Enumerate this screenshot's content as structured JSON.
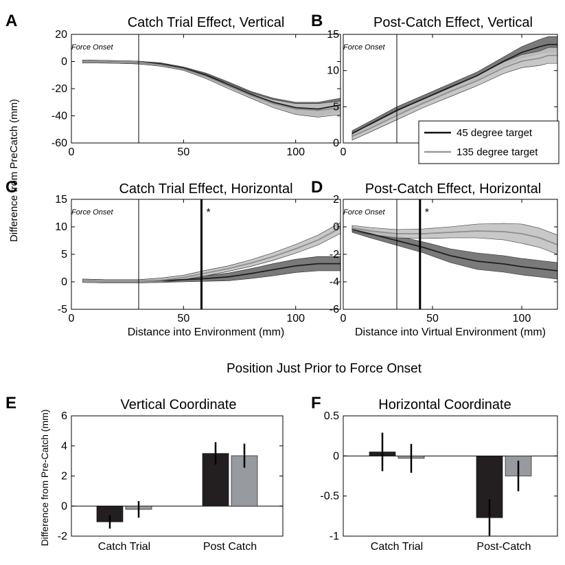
{
  "figure": {
    "ylabel_top": "Difference from PreCatch (mm)",
    "ylabel_bottom": "Difference from Pre-Catch (mm)",
    "section_title": "Position Just Prior to Force Onset",
    "legend": {
      "items": [
        {
          "label": "45 degree target",
          "color": "#111111"
        },
        {
          "label": "135 degree target",
          "color": "#999999"
        }
      ]
    },
    "colors": {
      "dark_line": "#1e1e1e",
      "dark_band": "#6b6b6b",
      "light_line": "#8e8e8e",
      "light_band": "#c2c2c2",
      "bar_dark": "#231f20",
      "bar_light": "#979a9e"
    }
  },
  "chart_data": [
    {
      "id": "A",
      "panel_letter": "A",
      "type": "line",
      "title": "Catch Trial Effect, Vertical",
      "xlabel": "",
      "ylabel": "",
      "xlim": [
        0,
        120
      ],
      "ylim": [
        -60,
        20
      ],
      "xticks": [
        0,
        50,
        100
      ],
      "yticks": [
        -60,
        -40,
        -20,
        0,
        20
      ],
      "annotation": {
        "text": "Force Onset",
        "x": 30
      },
      "significance": null,
      "series": [
        {
          "name": "45 degree target",
          "tone": "dark",
          "x": [
            5,
            15,
            25,
            30,
            40,
            50,
            60,
            70,
            80,
            90,
            100,
            110,
            120
          ],
          "y": [
            0,
            -0.2,
            -0.5,
            -0.8,
            -2,
            -5,
            -10,
            -17,
            -24,
            -30,
            -34,
            -35,
            -32
          ],
          "band": [
            1,
            1,
            1,
            1,
            1,
            1,
            1.5,
            2,
            2,
            3,
            4,
            5,
            5
          ]
        },
        {
          "name": "135 degree target",
          "tone": "light",
          "x": [
            5,
            15,
            25,
            30,
            40,
            50,
            60,
            70,
            80,
            90,
            100,
            110,
            120
          ],
          "y": [
            0,
            -0.2,
            -0.5,
            -0.8,
            -2.5,
            -5.5,
            -11,
            -18,
            -25,
            -31,
            -35,
            -36,
            -34
          ],
          "band": [
            1,
            1,
            1,
            1,
            1,
            1,
            1.5,
            2,
            2,
            3,
            4,
            5,
            5
          ]
        }
      ]
    },
    {
      "id": "B",
      "panel_letter": "B",
      "type": "line",
      "title": "Post-Catch Effect, Vertical",
      "xlabel": "",
      "ylabel": "",
      "xlim": [
        0,
        120
      ],
      "ylim": [
        0,
        15
      ],
      "xticks": [
        0,
        50,
        100
      ],
      "yticks": [
        0,
        5,
        10,
        15
      ],
      "annotation": {
        "text": "Force Onset",
        "x": 30
      },
      "significance": null,
      "series": [
        {
          "name": "45 degree target",
          "tone": "dark",
          "x": [
            5,
            15,
            30,
            45,
            60,
            75,
            90,
            100,
            110,
            115,
            120
          ],
          "y": [
            1.3,
            2.6,
            4.5,
            6.1,
            7.7,
            9.3,
            11.3,
            12.5,
            13.3,
            13.6,
            13.6
          ],
          "band": [
            0.4,
            0.4,
            0.5,
            0.5,
            0.5,
            0.5,
            0.6,
            0.8,
            1.0,
            1.1,
            1.1
          ]
        },
        {
          "name": "135 degree target",
          "tone": "light",
          "x": [
            5,
            15,
            30,
            45,
            60,
            75,
            90,
            100,
            110,
            115,
            120
          ],
          "y": [
            0.9,
            2.0,
            3.8,
            5.5,
            7.1,
            8.6,
            10.4,
            11.3,
            11.7,
            12.1,
            12.1
          ],
          "band": [
            0.5,
            0.5,
            0.6,
            0.6,
            0.7,
            0.7,
            0.8,
            0.9,
            1.0,
            1.1,
            1.1
          ]
        }
      ]
    },
    {
      "id": "C",
      "panel_letter": "C",
      "type": "line",
      "title": "Catch Trial Effect, Horizontal",
      "xlabel": "Distance into Environment (mm)",
      "ylabel": "",
      "xlim": [
        0,
        120
      ],
      "ylim": [
        -5,
        15
      ],
      "xticks": [
        0,
        50,
        100
      ],
      "yticks": [
        -5,
        0,
        5,
        10,
        15
      ],
      "annotation": {
        "text": "Force Onset",
        "x": 30
      },
      "significance": {
        "x": 58,
        "mark": "*"
      },
      "series": [
        {
          "name": "45 degree target",
          "tone": "dark",
          "x": [
            5,
            15,
            25,
            30,
            40,
            50,
            60,
            70,
            80,
            90,
            100,
            110,
            120
          ],
          "y": [
            0.2,
            0.1,
            0.1,
            0.1,
            0.2,
            0.4,
            0.6,
            0.9,
            1.5,
            2.2,
            2.9,
            3.3,
            3.3
          ],
          "band": [
            0.3,
            0.3,
            0.3,
            0.3,
            0.3,
            0.4,
            0.5,
            0.7,
            0.9,
            1.1,
            1.2,
            1.3,
            1.3
          ]
        },
        {
          "name": "135 degree target",
          "tone": "light",
          "x": [
            5,
            15,
            25,
            30,
            40,
            50,
            60,
            70,
            80,
            90,
            100,
            110,
            120
          ],
          "y": [
            0.2,
            0.1,
            0.1,
            0.1,
            0.3,
            0.8,
            1.6,
            2.4,
            3.4,
            4.6,
            6.0,
            7.6,
            9.8
          ],
          "band": [
            0.3,
            0.3,
            0.3,
            0.3,
            0.4,
            0.4,
            0.5,
            0.5,
            0.6,
            0.7,
            0.8,
            0.9,
            1.0
          ]
        }
      ]
    },
    {
      "id": "D",
      "panel_letter": "D",
      "type": "line",
      "title": "Post-Catch Effect, Horizontal",
      "xlabel": "Distance into Virtual Environment (mm)",
      "ylabel": "",
      "xlim": [
        0,
        120
      ],
      "ylim": [
        -6,
        2
      ],
      "xticks": [
        0,
        50,
        100
      ],
      "yticks": [
        -6,
        -4,
        -2,
        0,
        2
      ],
      "annotation": {
        "text": "Force Onset",
        "x": 30
      },
      "significance": {
        "x": 43,
        "mark": "*"
      },
      "series": [
        {
          "name": "45 degree target",
          "tone": "dark",
          "x": [
            5,
            15,
            30,
            45,
            60,
            75,
            90,
            100,
            110,
            120
          ],
          "y": [
            -0.2,
            -0.5,
            -1.0,
            -1.5,
            -2.1,
            -2.5,
            -2.7,
            -2.9,
            -3.05,
            -3.2
          ],
          "band": [
            0.2,
            0.3,
            0.35,
            0.4,
            0.5,
            0.6,
            0.6,
            0.6,
            0.6,
            0.6
          ]
        },
        {
          "name": "135 degree target",
          "tone": "light",
          "x": [
            5,
            15,
            30,
            45,
            60,
            75,
            90,
            100,
            110,
            120
          ],
          "y": [
            -0.1,
            -0.3,
            -0.5,
            -0.5,
            -0.4,
            -0.3,
            -0.35,
            -0.5,
            -0.8,
            -1.3
          ],
          "band": [
            0.2,
            0.25,
            0.3,
            0.35,
            0.4,
            0.5,
            0.6,
            0.7,
            0.7,
            0.7
          ]
        }
      ]
    },
    {
      "id": "E",
      "panel_letter": "E",
      "type": "bar",
      "title": "Vertical Coordinate",
      "xlabel": "",
      "ylabel": "",
      "ylim": [
        -2,
        6
      ],
      "yticks": [
        -2,
        0,
        2,
        4,
        6
      ],
      "categories": [
        "Catch Trial",
        "Post Catch"
      ],
      "series": [
        {
          "name": "45 degree target",
          "tone": "dark",
          "values": [
            -1.05,
            3.5
          ],
          "err": [
            0.45,
            0.75
          ]
        },
        {
          "name": "135 degree target",
          "tone": "light",
          "values": [
            -0.22,
            3.35
          ],
          "err": [
            0.55,
            0.8
          ]
        }
      ]
    },
    {
      "id": "F",
      "panel_letter": "F",
      "type": "bar",
      "title": "Horizontal Coordinate",
      "xlabel": "",
      "ylabel": "",
      "ylim": [
        -1,
        0.5
      ],
      "yticks": [
        -1,
        -0.5,
        0,
        0.5
      ],
      "categories": [
        "Catch Trial",
        "Post-Catch"
      ],
      "series": [
        {
          "name": "45 degree target",
          "tone": "dark",
          "values": [
            0.05,
            -0.77
          ],
          "err": [
            0.24,
            0.23
          ]
        },
        {
          "name": "135 degree target",
          "tone": "light",
          "values": [
            -0.03,
            -0.25
          ],
          "err": [
            0.18,
            0.19
          ]
        }
      ]
    }
  ]
}
